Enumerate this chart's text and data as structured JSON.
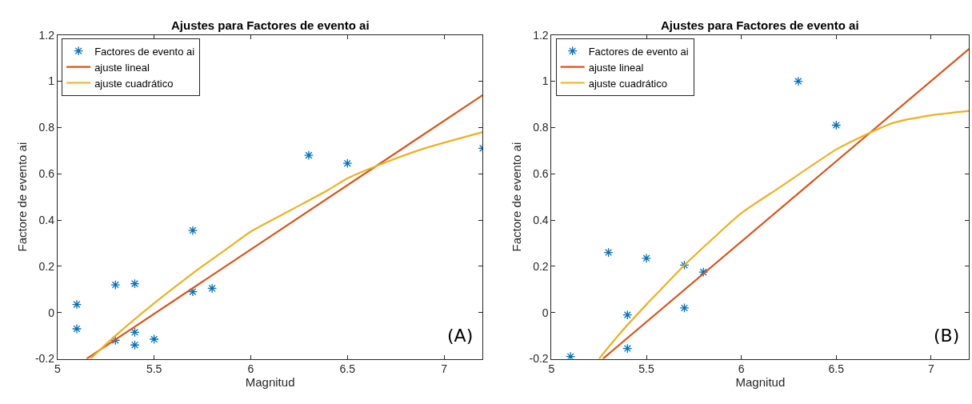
{
  "chart_data": [
    {
      "type": "scatter",
      "title": "Ajustes para Factores de evento ai",
      "xlabel": "Magnitud",
      "ylabel": "Factore de evento ai",
      "xlim": [
        5,
        7.2
      ],
      "xticks": [
        5,
        5.5,
        6,
        6.5,
        7
      ],
      "ylim": [
        -0.2,
        1.2
      ],
      "yticks": [
        -0.2,
        0,
        0.2,
        0.4,
        0.6,
        0.8,
        1,
        1.2
      ],
      "legend": "top left",
      "annotations": [
        "(A)"
      ],
      "series": [
        {
          "name": "Factores de evento ai",
          "marker": "cross",
          "color": "#0072bd",
          "x": [
            5.1,
            5.1,
            5.3,
            5.3,
            5.4,
            5.4,
            5.4,
            5.5,
            5.7,
            5.7,
            5.8,
            6.3,
            6.5,
            7.2
          ],
          "values": [
            0.035,
            -0.07,
            0.12,
            -0.12,
            0.125,
            -0.085,
            -0.14,
            -0.115,
            0.355,
            0.09,
            0.105,
            0.68,
            0.645,
            0.71
          ]
        },
        {
          "name": "ajuste lineal",
          "type": "line",
          "marker": "none",
          "line_style": "solid",
          "color": "#d95319",
          "x": [
            5.15,
            7.2
          ],
          "values": [
            -0.2,
            0.94
          ]
        },
        {
          "name": "ajuste cuadrático",
          "type": "line",
          "marker": "none",
          "line_style": "solid",
          "color": "#edb120",
          "x": [
            5.17,
            5.3,
            5.5,
            5.7,
            5.9,
            6.0,
            6.2,
            6.4,
            6.5,
            6.7,
            6.9,
            7.2
          ],
          "values": [
            -0.2,
            -0.1,
            0.04,
            0.17,
            0.29,
            0.35,
            0.44,
            0.53,
            0.58,
            0.65,
            0.71,
            0.78
          ]
        }
      ]
    },
    {
      "type": "scatter",
      "title": "Ajustes para Factores de evento ai",
      "xlabel": "Magnitud",
      "ylabel": "Factore de evento ai",
      "xlim": [
        5,
        7.2
      ],
      "xticks": [
        5,
        5.5,
        6,
        6.5,
        7
      ],
      "ylim": [
        -0.2,
        1.2
      ],
      "yticks": [
        -0.2,
        0,
        0.2,
        0.4,
        0.6,
        0.8,
        1,
        1.2
      ],
      "legend": "top left",
      "annotations": [
        "(B)"
      ],
      "series": [
        {
          "name": "Factores de evento ai",
          "marker": "cross",
          "color": "#0072bd",
          "x": [
            5.1,
            5.3,
            5.4,
            5.4,
            5.5,
            5.7,
            5.7,
            5.8,
            6.3,
            6.5
          ],
          "values": [
            -0.19,
            0.26,
            -0.01,
            -0.155,
            0.235,
            0.205,
            0.02,
            0.175,
            1.0,
            0.81
          ]
        },
        {
          "name": "ajuste lineal",
          "type": "line",
          "marker": "none",
          "line_style": "solid",
          "color": "#d95319",
          "x": [
            5.27,
            7.2
          ],
          "values": [
            -0.2,
            1.14
          ]
        },
        {
          "name": "ajuste cuadrático",
          "type": "line",
          "marker": "none",
          "line_style": "solid",
          "color": "#edb120",
          "x": [
            5.25,
            5.35,
            5.5,
            5.6,
            5.7,
            5.85,
            6.0,
            6.2,
            6.5,
            6.65,
            6.8,
            7.0,
            7.2
          ],
          "values": [
            -0.2,
            -0.1,
            0.035,
            0.12,
            0.205,
            0.32,
            0.43,
            0.54,
            0.705,
            0.767,
            0.82,
            0.853,
            0.872
          ]
        }
      ]
    }
  ]
}
